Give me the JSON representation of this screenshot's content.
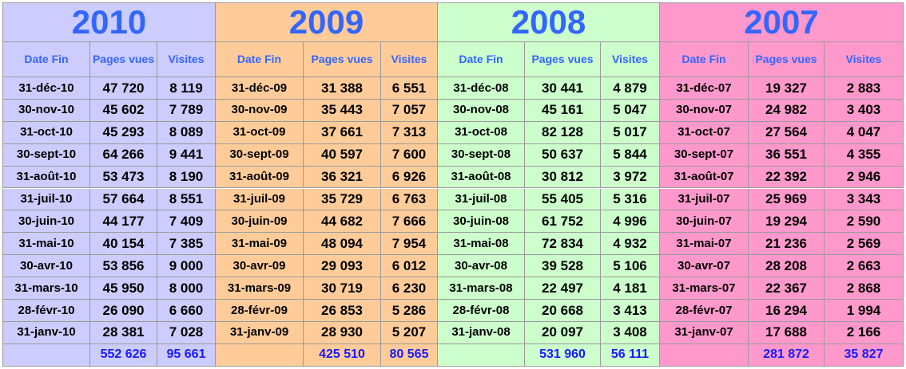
{
  "blocks": [
    {
      "year": "2010",
      "headers": [
        "Date Fin",
        "Pages vues",
        "Visites"
      ],
      "rows": [
        [
          "31-déc-10",
          "47 720",
          "8 119"
        ],
        [
          "30-nov-10",
          "45 602",
          "7 789"
        ],
        [
          "31-oct-10",
          "45 293",
          "8 089"
        ],
        [
          "30-sept-10",
          "64 266",
          "9 441"
        ],
        [
          "31-août-10",
          "53 473",
          "8 190"
        ],
        [
          "31-juil-10",
          "57 664",
          "8 551"
        ],
        [
          "30-juin-10",
          "44 177",
          "7 409"
        ],
        [
          "31-mai-10",
          "40 154",
          "7 385"
        ],
        [
          "30-avr-10",
          "53 856",
          "9 000"
        ],
        [
          "31-mars-10",
          "45 950",
          "8 000"
        ],
        [
          "28-févr-10",
          "26 090",
          "6 660"
        ],
        [
          "31-janv-10",
          "28 381",
          "7 028"
        ]
      ],
      "totals": [
        "552 626",
        "95 661"
      ]
    },
    {
      "year": "2009",
      "headers": [
        "Date Fin",
        "Pages vues",
        "Visites"
      ],
      "rows": [
        [
          "31-déc-09",
          "31 388",
          "6 551"
        ],
        [
          "30-nov-09",
          "35 443",
          "7 057"
        ],
        [
          "31-oct-09",
          "37 661",
          "7 313"
        ],
        [
          "30-sept-09",
          "40 597",
          "7 600"
        ],
        [
          "31-août-09",
          "36 321",
          "6 926"
        ],
        [
          "31-juil-09",
          "35 729",
          "6 763"
        ],
        [
          "30-juin-09",
          "44 682",
          "7 666"
        ],
        [
          "31-mai-09",
          "48 094",
          "7 954"
        ],
        [
          "30-avr-09",
          "29 093",
          "6 012"
        ],
        [
          "31-mars-09",
          "30 719",
          "6 230"
        ],
        [
          "28-févr-09",
          "26 853",
          "5 286"
        ],
        [
          "31-janv-09",
          "28 930",
          "5 207"
        ]
      ],
      "totals": [
        "425 510",
        "80 565"
      ]
    },
    {
      "year": "2008",
      "headers": [
        "Date Fin",
        "Pages vues",
        "Visites"
      ],
      "rows": [
        [
          "31-déc-08",
          "30 441",
          "4 879"
        ],
        [
          "30-nov-08",
          "45 161",
          "5 047"
        ],
        [
          "31-oct-08",
          "82 128",
          "5 017"
        ],
        [
          "30-sept-08",
          "50 637",
          "5 844"
        ],
        [
          "31-août-08",
          "30 812",
          "3 972"
        ],
        [
          "31-juil-08",
          "55 405",
          "5 316"
        ],
        [
          "30-juin-08",
          "61 752",
          "4 996"
        ],
        [
          "31-mai-08",
          "72 834",
          "4 932"
        ],
        [
          "30-avr-08",
          "39 528",
          "5 106"
        ],
        [
          "31-mars-08",
          "22 497",
          "4 181"
        ],
        [
          "28-févr-08",
          "20 668",
          "3 413"
        ],
        [
          "31-janv-08",
          "20 097",
          "3 408"
        ]
      ],
      "totals": [
        "531 960",
        "56 111"
      ]
    },
    {
      "year": "2007",
      "headers": [
        "Date Fin",
        "Pages vues",
        "Visites"
      ],
      "rows": [
        [
          "31-déc-07",
          "19 327",
          "2 883"
        ],
        [
          "30-nov-07",
          "24 982",
          "3 403"
        ],
        [
          "31-oct-07",
          "27 564",
          "4 047"
        ],
        [
          "30-sept-07",
          "36 551",
          "4 355"
        ],
        [
          "31-août-07",
          "22 392",
          "2 946"
        ],
        [
          "31-juil-07",
          "25 969",
          "3 343"
        ],
        [
          "30-juin-07",
          "19 294",
          "2 590"
        ],
        [
          "31-mai-07",
          "21 236",
          "2 569"
        ],
        [
          "30-avr-07",
          "28 208",
          "2 663"
        ],
        [
          "31-mars-07",
          "22 367",
          "2 868"
        ],
        [
          "28-févr-07",
          "16 294",
          "1 994"
        ],
        [
          "31-janv-07",
          "17 688",
          "2 166"
        ]
      ],
      "totals": [
        "281 872",
        "35 827"
      ]
    }
  ]
}
